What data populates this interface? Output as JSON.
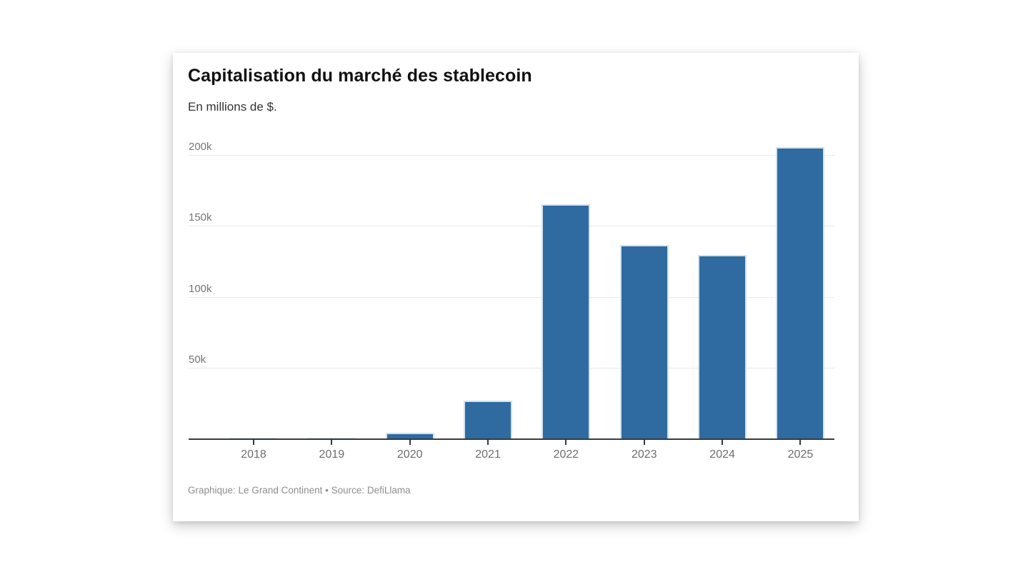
{
  "window": {
    "background_color": "#ffffff",
    "card_color": "#ffffff"
  },
  "card": {
    "title": "Capitalisation du marché des stablecoin",
    "subtitle": "En millions de $.",
    "footer": "Graphique: Le Grand Continent • Source: DefiLlama"
  },
  "chart_data": {
    "type": "bar",
    "title": "Capitalisation du marché des stablecoin",
    "subtitle": "En millions de $.",
    "categories": [
      "2018",
      "2019",
      "2020",
      "2021",
      "2022",
      "2023",
      "2024",
      "2025"
    ],
    "values": [
      400,
      1100,
      4600,
      27000,
      166000,
      137000,
      130000,
      206000
    ],
    "ylim": [
      0,
      200000
    ],
    "y_ticks": {
      "values": [
        50000,
        100000,
        150000,
        200000
      ],
      "labels": [
        "50k",
        "100k",
        "150k",
        "200k"
      ]
    },
    "grid": "horizontal-only",
    "legend": "none",
    "bar_color": "#2f6ba0",
    "bar_stroke_color": "#d3e1ee",
    "axis_color": "#3a3a3a",
    "gridline_color": "#e9e9e9",
    "y_tick_label_color": "#757575",
    "x_tick_label_color": "#6e6e6e",
    "credit": "Le Grand Continent",
    "source": "DefiLlama"
  }
}
